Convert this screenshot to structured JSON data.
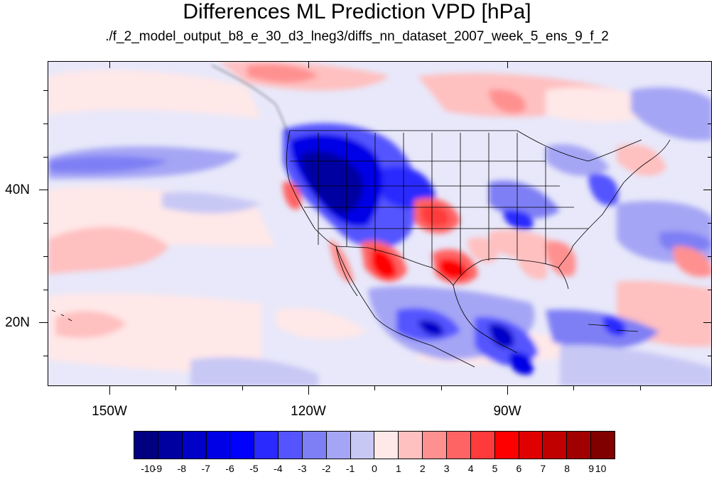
{
  "title": "Differences ML Prediction VPD [hPa]",
  "subtitle": "./f_2_model_output_b8_e_30_d3_lneg3/diffs_nn_dataset_2007_week_5_ens_9_f_2",
  "map": {
    "lat_labels": [
      "40N",
      "20N"
    ],
    "lon_labels": [
      "150W",
      "120W",
      "90W"
    ]
  },
  "colorbar": {
    "labels": [
      "-10",
      "-9",
      "-8",
      "-7",
      "-6",
      "-5",
      "-4",
      "-3",
      "-2",
      "-1",
      "0",
      "1",
      "2",
      "3",
      "4",
      "5",
      "6",
      "7",
      "8",
      "9",
      "10"
    ],
    "colors": [
      "#000080",
      "#0000a0",
      "#0000c8",
      "#0000e6",
      "#0000ff",
      "#2a2aff",
      "#5555ff",
      "#7f7ff5",
      "#a5a5f5",
      "#c8c8f5",
      "#e8e8fa",
      "#ffe8e8",
      "#ffc0c0",
      "#ff9090",
      "#ff6464",
      "#ff3a3a",
      "#ff0000",
      "#e00000",
      "#c00000",
      "#a00000",
      "#800000"
    ]
  }
}
